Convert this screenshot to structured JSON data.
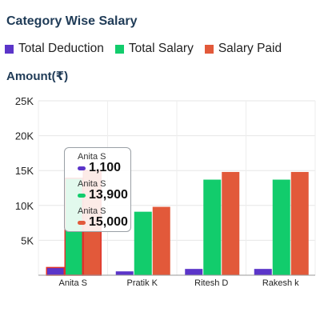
{
  "title": "Category Wise Salary",
  "y_axis_title": "Amount(₹)",
  "chart_data": {
    "type": "bar",
    "title": "Category Wise Salary",
    "ylabel": "Amount(₹)",
    "categories": [
      "Anita S",
      "Pratik K",
      "Ritesh D",
      "Rakesh k"
    ],
    "series": [
      {
        "name": "Total Deduction",
        "color": "#5b35c9",
        "values": [
          1100,
          550,
          900,
          900
        ]
      },
      {
        "name": "Total Salary",
        "color": "#12cc6c",
        "values": [
          13900,
          9100,
          13700,
          13700
        ]
      },
      {
        "name": "Salary Paid",
        "color": "#e2593a",
        "values": [
          15000,
          9800,
          14800,
          14800
        ]
      }
    ],
    "ylim": [
      0,
      25000
    ],
    "yticks": [
      "5K",
      "10K",
      "15K",
      "20K",
      "25K"
    ],
    "ytick_values": [
      5000,
      10000,
      15000,
      20000,
      25000
    ],
    "grid": true,
    "legend": "top-left",
    "selected_category": "Anita S"
  },
  "tooltip": {
    "entries": [
      {
        "category": "Anita S",
        "value": "1,100",
        "color": "#5b35c9"
      },
      {
        "category": "Anita S",
        "value": "13,900",
        "color": "#12cc6c"
      },
      {
        "category": "Anita S",
        "value": "15,000",
        "color": "#e2593a"
      }
    ]
  }
}
